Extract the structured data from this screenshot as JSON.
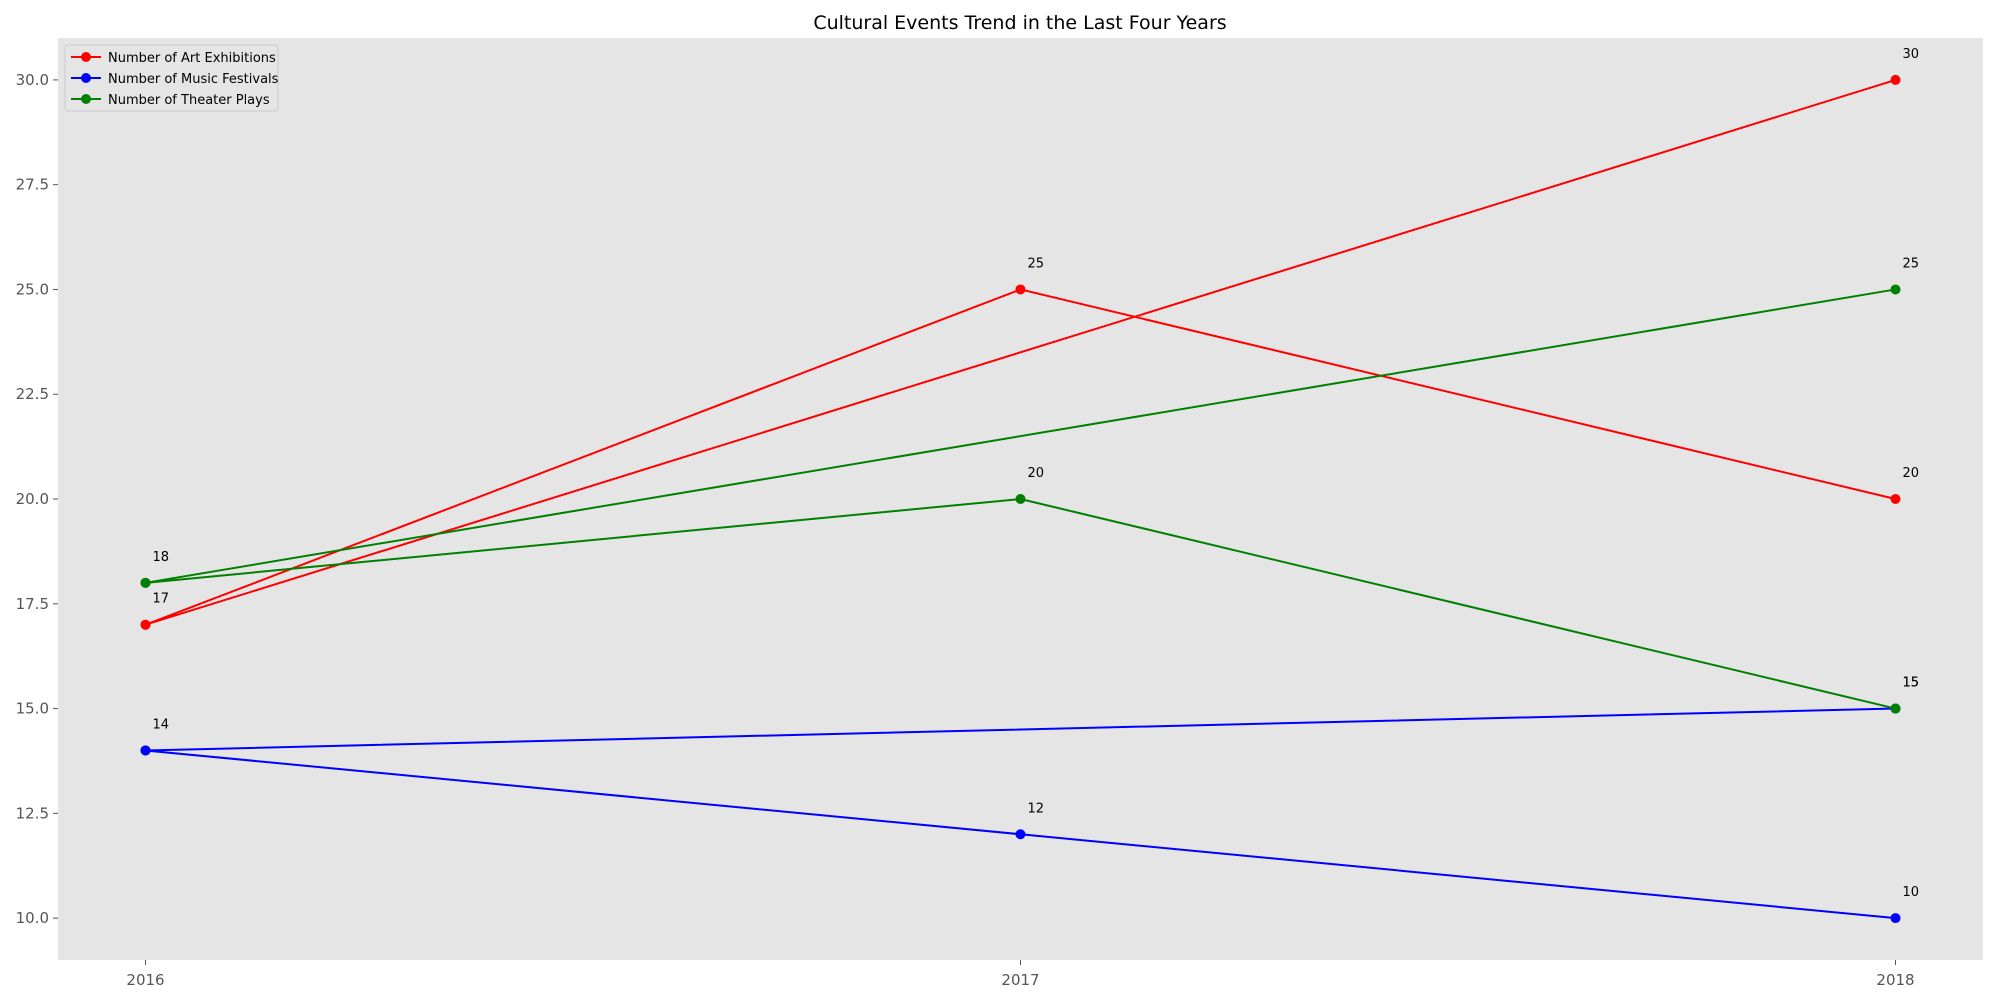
{
  "chart_data": {
    "type": "line",
    "title": "Cultural Events Trend in the Last Four Years",
    "xlabel": "",
    "ylabel": "",
    "x_ticks": [
      "2016",
      "2017",
      "2018"
    ],
    "x_range": [
      2015.9,
      2018.1
    ],
    "y_ticks": [
      "10.0",
      "12.5",
      "15.0",
      "17.5",
      "20.0",
      "22.5",
      "25.0",
      "27.5",
      "30.0"
    ],
    "ylim": [
      9.0,
      31.0
    ],
    "grid": false,
    "legend_placement": "top-left",
    "background_color": "#e5e5e5",
    "series": [
      {
        "name": "Number of Art Exhibitions",
        "color": "#ff0000",
        "x": [
          2016,
          2018,
          2016,
          2017,
          2018
        ],
        "values": [
          17,
          30,
          17,
          25,
          20
        ],
        "labels": [
          "17",
          "30",
          "",
          "25",
          "20"
        ]
      },
      {
        "name": "Number of Music Festivals",
        "color": "#0000ff",
        "x": [
          2016,
          2018,
          2016,
          2017,
          2018
        ],
        "values": [
          14,
          15,
          14,
          12,
          10
        ],
        "labels": [
          "14",
          "15",
          "",
          "12",
          "10"
        ]
      },
      {
        "name": "Number of Theater Plays",
        "color": "#008000",
        "x": [
          2016,
          2018,
          2016,
          2017,
          2018
        ],
        "values": [
          18,
          25,
          18,
          20,
          15
        ],
        "labels": [
          "18",
          "25",
          "",
          "20",
          "15"
        ]
      }
    ]
  }
}
